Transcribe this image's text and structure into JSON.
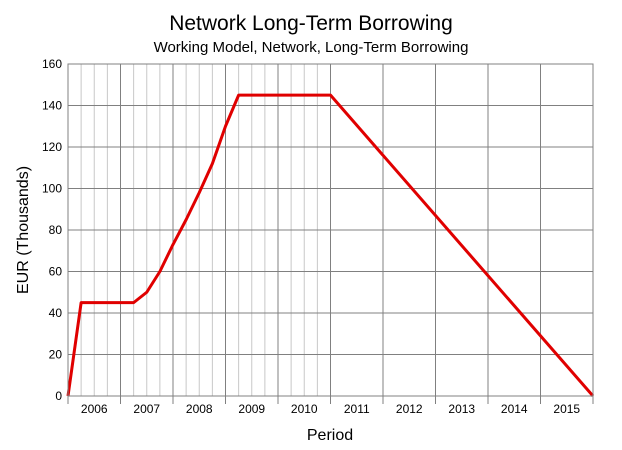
{
  "chart_data": {
    "type": "line",
    "title": "Network Long-Term Borrowing",
    "subtitle": "Working Model, Network, Long-Term Borrowing",
    "xlabel": "Period",
    "ylabel": "EUR (Thousands)",
    "ylim": [
      0,
      160
    ],
    "yticks": [
      0,
      20,
      40,
      60,
      80,
      100,
      120,
      140,
      160
    ],
    "xlim": [
      2005.5,
      2015.5
    ],
    "year_labels": [
      "2006",
      "2007",
      "2008",
      "2009",
      "2010",
      "2011",
      "2012",
      "2013",
      "2014",
      "2015"
    ],
    "grid": true,
    "line_color": "#e00000",
    "series": [
      {
        "x": [
          2005.5,
          2005.75,
          2006.75,
          2007.0,
          2007.25,
          2007.5,
          2007.75,
          2008.0,
          2008.25,
          2008.5,
          2008.75,
          2010.5,
          2015.5
        ],
        "values": [
          0,
          45,
          45,
          50,
          60,
          73,
          85,
          98,
          112,
          130,
          145,
          145,
          0
        ]
      }
    ]
  }
}
